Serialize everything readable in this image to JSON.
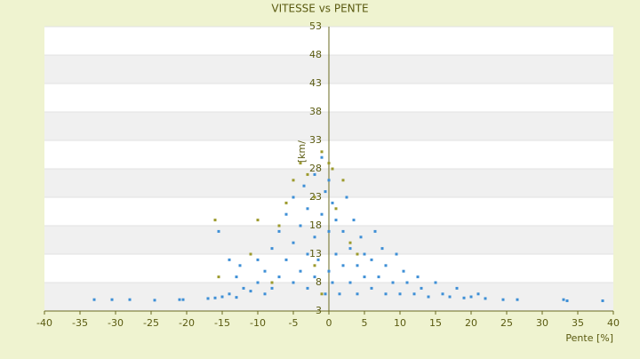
{
  "chart_data": {
    "type": "scatter",
    "title": "VITESSE vs PENTE",
    "x_label": "Pente [%]",
    "y_label": "[km/h]",
    "xlim": [
      -40,
      40
    ],
    "xticks": [
      -40,
      -35,
      -30,
      -25,
      -20,
      -15,
      -10,
      -5,
      0,
      5,
      10,
      15,
      20,
      25,
      30,
      35,
      40
    ],
    "ylim": [
      3,
      53
    ],
    "yticks": [
      3,
      8,
      13,
      18,
      23,
      28,
      33,
      38,
      43,
      48,
      53
    ],
    "grid": true,
    "series": [
      {
        "color": "#3e8fd6",
        "x": [
          -33,
          -30.5,
          -28,
          -24.5,
          -21,
          -20.5,
          -17,
          -16,
          -15,
          -14,
          -13,
          -12,
          -11,
          -10,
          -10,
          -9,
          -9,
          -8,
          -8,
          -7,
          -7,
          -6,
          -6,
          -5,
          -5,
          -5,
          -4,
          -4,
          -3.5,
          -3,
          -3,
          -3,
          -2,
          -2,
          -2,
          -1.5,
          -1,
          -1,
          -0.5,
          -0.5,
          0,
          0,
          0,
          0.5,
          0.5,
          1,
          1,
          1.5,
          2,
          2,
          2.5,
          3,
          3,
          3.5,
          4,
          4,
          4.5,
          5,
          5,
          6,
          6,
          6.5,
          7,
          7.5,
          8,
          8,
          9,
          9.5,
          10,
          10.5,
          11,
          12,
          12.5,
          13,
          14,
          15,
          16,
          17,
          18,
          19,
          20,
          21,
          22,
          24.5,
          26.5,
          33,
          33.5,
          38.5,
          -15.5,
          -14,
          -12.5,
          -13
        ],
        "values": [
          5,
          5,
          5,
          4.9,
          5,
          5,
          5.2,
          5.3,
          5.5,
          6,
          5.4,
          7,
          6.5,
          8,
          12,
          6,
          10,
          14,
          7,
          9,
          17,
          12,
          20,
          8,
          15,
          23,
          10,
          18,
          25,
          7,
          13,
          21,
          9,
          16,
          27,
          12,
          20,
          30,
          6,
          24,
          10,
          17,
          26,
          8,
          22,
          13,
          19,
          6,
          11,
          17,
          23,
          8,
          14,
          19,
          6,
          11,
          16,
          9,
          13,
          7,
          12,
          17,
          9,
          14,
          6,
          11,
          8,
          13,
          6,
          10,
          8,
          6,
          9,
          7,
          5.5,
          8,
          6,
          5.5,
          7,
          5.3,
          5.5,
          6,
          5.2,
          5,
          5,
          5,
          4.8,
          4.8,
          17,
          12,
          11,
          9
        ]
      },
      {
        "color": "#9c9a2c",
        "x": [
          -16,
          -15.5,
          -10,
          -7,
          -6,
          -5,
          -4,
          -3,
          -2,
          -1,
          0,
          0.5,
          1,
          2,
          3,
          4,
          -2,
          -8,
          -1,
          -11
        ],
        "values": [
          19,
          9,
          19,
          18,
          22,
          26,
          29,
          27,
          23,
          31,
          29,
          28,
          21,
          26,
          15,
          13,
          11,
          8,
          6,
          13
        ]
      }
    ]
  }
}
